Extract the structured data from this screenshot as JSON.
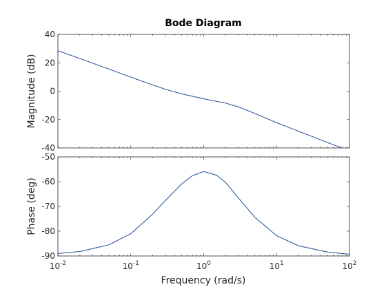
{
  "chart_data": {
    "type": "line",
    "title": "Bode Diagram",
    "xlabel": "Frequency  (rad/s)",
    "x_scale": "log",
    "xlim": [
      0.01,
      100
    ],
    "x_ticks": [
      0.01,
      0.1,
      1,
      10,
      100
    ],
    "x_tick_labels": [
      {
        "base": "10",
        "exp": "-2"
      },
      {
        "base": "10",
        "exp": "-1"
      },
      {
        "base": "10",
        "exp": "0"
      },
      {
        "base": "10",
        "exp": "1"
      },
      {
        "base": "10",
        "exp": "2"
      }
    ],
    "panels": [
      {
        "id": "magnitude",
        "ylabel": "Magnitude (dB)",
        "ylim": [
          -40,
          40
        ],
        "y_ticks": [
          -40,
          -20,
          0,
          20,
          40
        ],
        "y_tick_labels": [
          "-40",
          "-20",
          "0",
          "20",
          "40"
        ],
        "series": [
          {
            "color": "#d62728",
            "style": "dashed",
            "x": [
              0.01,
              0.02,
              0.05,
              0.1,
              0.2,
              0.3,
              0.5,
              1,
              2,
              3,
              5,
              10,
              20,
              50,
              100
            ],
            "y": [
              28.5,
              23.0,
              15.6,
              9.9,
              4.4,
              1.3,
              -1.9,
              -5.4,
              -8.4,
              -11.1,
              -15.6,
              -22.2,
              -28.2,
              -36.2,
              -42.0
            ]
          },
          {
            "color": "#1f5fa8",
            "style": "solid",
            "x": [
              0.01,
              0.02,
              0.05,
              0.1,
              0.2,
              0.3,
              0.5,
              1,
              2,
              3,
              5,
              10,
              20,
              50,
              100
            ],
            "y": [
              28.5,
              23.0,
              15.6,
              9.9,
              4.4,
              1.3,
              -1.9,
              -5.4,
              -8.4,
              -11.1,
              -15.6,
              -22.2,
              -28.2,
              -36.2,
              -42.0
            ]
          }
        ]
      },
      {
        "id": "phase",
        "ylabel": "Phase (deg)",
        "ylim": [
          -90,
          -50
        ],
        "y_ticks": [
          -90,
          -80,
          -70,
          -60,
          -50
        ],
        "y_tick_labels": [
          "-90",
          "-80",
          "-70",
          "-60",
          "-50"
        ],
        "series": [
          {
            "color": "#d62728",
            "style": "dashed",
            "x": [
              0.01,
              0.02,
              0.05,
              0.1,
              0.2,
              0.3,
              0.5,
              0.7,
              1,
              1.5,
              2,
              3,
              5,
              10,
              20,
              50,
              100
            ],
            "y": [
              -89.0,
              -88.2,
              -85.5,
              -81.0,
              -73.1,
              -67.5,
              -60.9,
              -57.6,
              -55.9,
              -57.4,
              -60.3,
              -66.6,
              -74.3,
              -81.8,
              -85.9,
              -88.4,
              -89.3
            ]
          },
          {
            "color": "#1f5fa8",
            "style": "solid",
            "x": [
              0.01,
              0.02,
              0.05,
              0.1,
              0.2,
              0.3,
              0.5,
              0.7,
              1,
              1.5,
              2,
              3,
              5,
              10,
              20,
              50,
              100
            ],
            "y": [
              -89.0,
              -88.2,
              -85.5,
              -81.0,
              -73.1,
              -67.5,
              -60.9,
              -57.6,
              -55.9,
              -57.4,
              -60.3,
              -66.6,
              -74.3,
              -81.8,
              -85.9,
              -88.4,
              -89.3
            ]
          }
        ]
      }
    ],
    "grid": false,
    "legend": false
  }
}
